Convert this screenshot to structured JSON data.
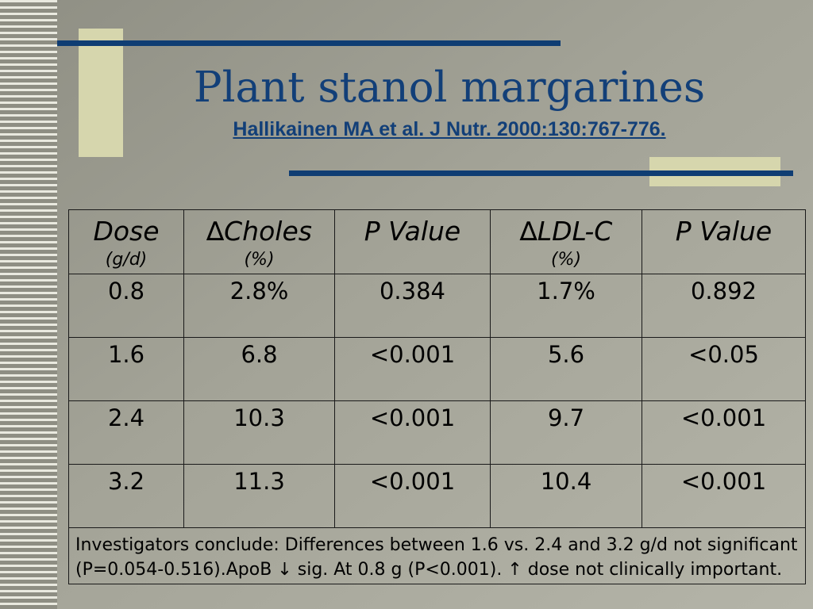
{
  "slide": {
    "title": "Plant stanol margarines",
    "citation": "Hallikainen MA et al. J Nutr. 2000:130:767-776."
  },
  "table": {
    "headers": [
      {
        "main": "Dose",
        "unit": "(g/d)"
      },
      {
        "main": "∆Choles",
        "unit": "(%)"
      },
      {
        "main": "P Value",
        "unit": ""
      },
      {
        "main": "∆LDL-C",
        "unit": "(%)"
      },
      {
        "main": "P Value",
        "unit": ""
      }
    ],
    "rows": [
      [
        "0.8",
        "2.8%",
        "0.384",
        "1.7%",
        "0.892"
      ],
      [
        "1.6",
        "6.8",
        "<0.001",
        "5.6",
        "<0.05"
      ],
      [
        "2.4",
        "10.3",
        "<0.001",
        "9.7",
        "<0.001"
      ],
      [
        "3.2",
        "11.3",
        "<0.001",
        "10.4",
        "<0.001"
      ]
    ],
    "note": "Investigators conclude: Differences between 1.6 vs. 2.4 and 3.2 g/d not significant (P=0.054-0.516).ApoB ↓ sig. At 0.8 g (P<0.001).  ↑ dose not clinically important."
  }
}
